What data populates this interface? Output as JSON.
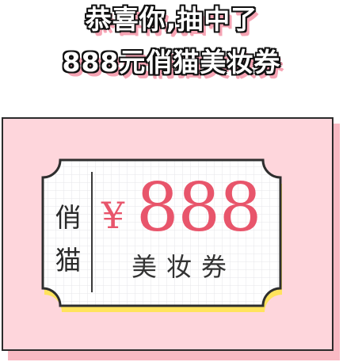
{
  "headline": {
    "line1": "恭喜你,抽中了",
    "line2": "888元俏猫美妆券"
  },
  "coupon": {
    "brand_char_1": "俏",
    "brand_char_2": "猫",
    "currency": "¥",
    "amount": "888",
    "label": "美妆券"
  },
  "colors": {
    "card_bg": "#fed6dc",
    "accent": "#e8556b",
    "ticket_shadow": "#ffe35c"
  }
}
